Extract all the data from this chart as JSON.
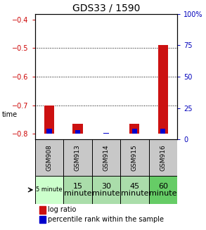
{
  "title": "GDS33 / 1590",
  "samples": [
    "GSM908",
    "GSM913",
    "GSM914",
    "GSM915",
    "GSM916"
  ],
  "time_labels_row1": [
    "5 minute",
    "15",
    "30",
    "45",
    "60"
  ],
  "time_labels_row2": [
    "",
    "minute",
    "minute",
    "minute",
    "minute"
  ],
  "time_colors": [
    "#ccffcc",
    "#aaddaa",
    "#aaddaa",
    "#aaddaa",
    "#66cc66"
  ],
  "log_ratio": [
    -0.7,
    -0.765,
    -0.8,
    -0.765,
    -0.49
  ],
  "log_ratio_base": -0.8,
  "percentile_vals": [
    4.0,
    3.0,
    0.5,
    4.0,
    4.0
  ],
  "ymin": -0.82,
  "ymax": -0.38,
  "yticks_left": [
    -0.8,
    -0.7,
    -0.6,
    -0.5,
    -0.4
  ],
  "yticks_right": [
    0,
    25,
    50,
    75,
    100
  ],
  "y2min": 0,
  "y2max": 100,
  "bar_width": 0.35,
  "blue_bar_width": 0.18,
  "red_color": "#cc1111",
  "blue_color": "#0000cc",
  "left_tick_color": "#cc0000",
  "right_tick_color": "#0000bb",
  "bg_color_gsm": "#c8c8c8",
  "font_size_title": 10,
  "font_size_ticks": 7,
  "font_size_gsm": 6.5,
  "font_size_time": 8,
  "font_size_time_small": 6,
  "font_size_legend": 7,
  "font_size_time_label": 7
}
